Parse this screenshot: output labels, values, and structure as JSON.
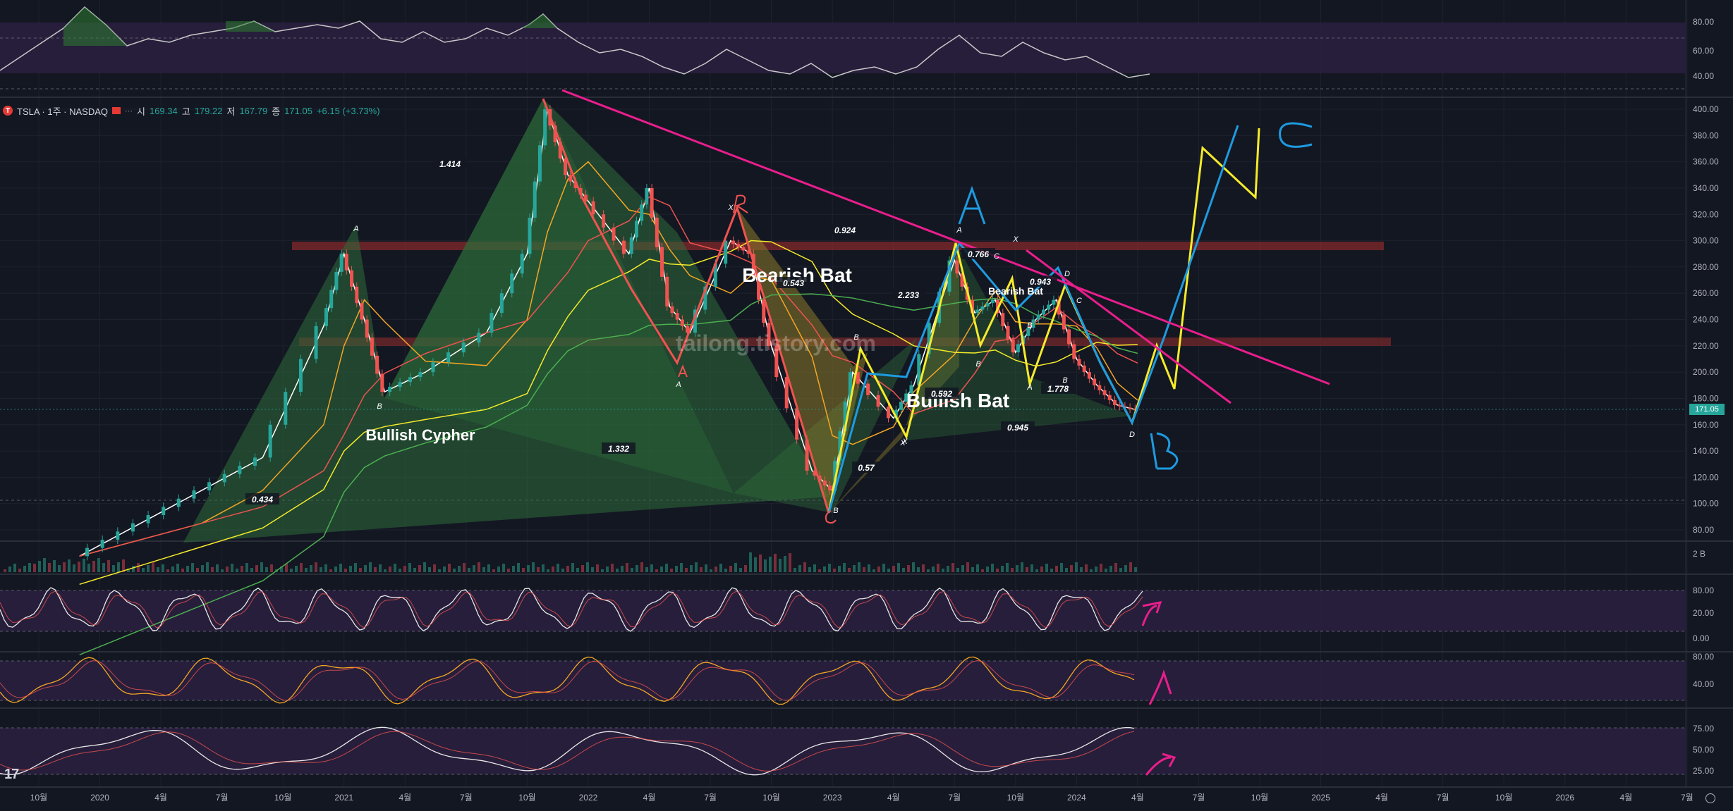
{
  "header": {
    "symbol": "TSLA · 1주 · NASDAQ",
    "symbol_icon": "T",
    "open_key": "시",
    "open": "169.34",
    "high_key": "고",
    "high": "179.22",
    "low_key": "저",
    "low": "167.79",
    "close_key": "종",
    "close": "171.05",
    "change": "+6.15 (+3.73%)"
  },
  "watermark": "tailong.tistory.com",
  "last_price": "171.05",
  "logo": "17",
  "colors": {
    "up": "#26a69a",
    "down": "#ef5350",
    "pink": "#e91e8c",
    "yellow": "#f5eb2a",
    "blue": "#1e9be0",
    "bg": "#131722"
  },
  "chart_data": {
    "type": "line",
    "title": "",
    "x_tick_labels": [
      "10월",
      "2020",
      "4월",
      "7월",
      "10월",
      "2021",
      "4월",
      "7월",
      "10월",
      "2022",
      "4월",
      "7월",
      "10월",
      "2023",
      "4월",
      "7월",
      "10월",
      "2024",
      "4월",
      "7월",
      "10월",
      "2025",
      "4월",
      "7월",
      "10월",
      "2026",
      "4월",
      "7월"
    ],
    "y_tick_labels": [
      "80.00",
      "100.00",
      "120.00",
      "140.00",
      "160.00",
      "180.00",
      "200.00",
      "220.00",
      "240.00",
      "260.00",
      "280.00",
      "300.00",
      "320.00",
      "340.00",
      "360.00",
      "380.00",
      "400.00"
    ],
    "ylim": [
      70,
      410
    ],
    "series": [
      {
        "name": "",
        "values": [
          {
            "x": "2019-12",
            "y": 60
          },
          {
            "x": "2020-03",
            "y": 85
          },
          {
            "x": "2020-06",
            "y": 110
          },
          {
            "x": "2020-09",
            "y": 135
          },
          {
            "x": "2020-12",
            "y": 235
          },
          {
            "x": "2021-01",
            "y": 290
          },
          {
            "x": "2021-02",
            "y": 240
          },
          {
            "x": "2021-03",
            "y": 185
          },
          {
            "x": "2021-05",
            "y": 200
          },
          {
            "x": "2021-08",
            "y": 230
          },
          {
            "x": "2021-10",
            "y": 290
          },
          {
            "x": "2021-11",
            "y": 400
          },
          {
            "x": "2021-12",
            "y": 350
          },
          {
            "x": "2022-01",
            "y": 330
          },
          {
            "x": "2022-03",
            "y": 290
          },
          {
            "x": "2022-04",
            "y": 340
          },
          {
            "x": "2022-05",
            "y": 250
          },
          {
            "x": "2022-06",
            "y": 230
          },
          {
            "x": "2022-08",
            "y": 300
          },
          {
            "x": "2022-09",
            "y": 290
          },
          {
            "x": "2022-10",
            "y": 220
          },
          {
            "x": "2022-12",
            "y": 125
          },
          {
            "x": "2023-01",
            "y": 110
          },
          {
            "x": "2023-02",
            "y": 200
          },
          {
            "x": "2023-04",
            "y": 165
          },
          {
            "x": "2023-05",
            "y": 190
          },
          {
            "x": "2023-07",
            "y": 285
          },
          {
            "x": "2023-08",
            "y": 245
          },
          {
            "x": "2023-09",
            "y": 255
          },
          {
            "x": "2023-10",
            "y": 215
          },
          {
            "x": "2023-11",
            "y": 240
          },
          {
            "x": "2023-12",
            "y": 255
          },
          {
            "x": "2024-01",
            "y": 210
          },
          {
            "x": "2024-02",
            "y": 190
          },
          {
            "x": "2024-03",
            "y": 175
          },
          {
            "x": "2024-04",
            "y": 171.05
          }
        ]
      }
    ],
    "pattern_labels": [
      {
        "text": "Bullish Cypher"
      },
      {
        "text": "Bearish Bat"
      },
      {
        "text": "Bullish Bat"
      },
      {
        "text": "Bearish Bat"
      }
    ],
    "ratio_labels": [
      "1.414",
      "1.332",
      "0.434",
      "0.924",
      "0.543",
      "2.233",
      "0.57",
      "0.592",
      "0.945",
      "0.766",
      "0.943",
      "1.778"
    ],
    "point_labels": [
      "A",
      "B",
      "X",
      "X",
      "B",
      "A",
      "C",
      "B",
      "X",
      "B",
      "A",
      "B",
      "A",
      "D",
      "C",
      "X",
      "B",
      "D"
    ],
    "handwritten_labels": [
      "A",
      "B",
      "C",
      "B",
      "A",
      "C"
    ],
    "volume_axis_label": "2 B",
    "osc_axis": {
      "rsi_top": [
        "80.00",
        "60.00",
        "40.00"
      ],
      "stoch1": [
        "80.00",
        "20.00",
        "0.00"
      ],
      "stoch2": [
        "80.00",
        "40.00"
      ],
      "osc3": [
        "75.00",
        "50.00",
        "25.00"
      ]
    },
    "legend": "none",
    "grid": true
  }
}
